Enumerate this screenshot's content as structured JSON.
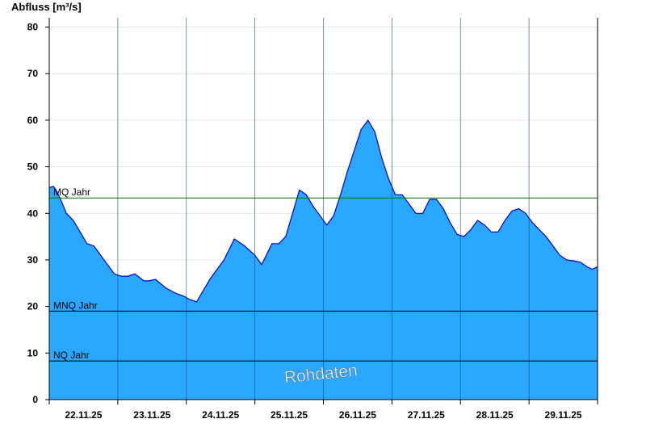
{
  "chart_data": {
    "type": "area",
    "ylabel": "Abfluss [m³/s]",
    "ylim": [
      0,
      82
    ],
    "yticks": [
      0,
      10,
      20,
      30,
      40,
      50,
      60,
      70,
      80
    ],
    "xlim_days": [
      0,
      8
    ],
    "day_labels": [
      "22.11.25",
      "23.11.25",
      "24.11.25",
      "25.11.25",
      "26.11.25",
      "27.11.25",
      "28.11.25",
      "29.11.25"
    ],
    "grid": true,
    "colors": {
      "area": "#2aa7ff",
      "line": "#0000cc",
      "mq": "#007700",
      "ref": "#000000"
    },
    "reference_lines": [
      {
        "label": "MQ Jahr",
        "value": 43.3
      },
      {
        "label": "MNQ Jahr",
        "value": 19.0
      },
      {
        "label": "NQ Jahr",
        "value": 8.3
      }
    ],
    "series": [
      {
        "x": [
          0,
          0.06,
          0.1,
          0.18,
          0.25,
          0.35,
          0.45,
          0.55,
          0.65,
          0.75,
          0.85,
          0.95,
          1.05,
          1.15,
          1.25,
          1.38,
          1.45,
          1.55,
          1.7,
          1.85,
          1.95,
          2.05,
          2.15,
          2.25,
          2.35,
          2.45,
          2.55,
          2.7,
          2.85,
          3.0,
          3.1,
          3.25,
          3.35,
          3.45,
          3.55,
          3.65,
          3.75,
          3.85,
          3.95,
          4.05,
          4.15,
          4.25,
          4.35,
          4.45,
          4.55,
          4.65,
          4.75,
          4.85,
          4.95,
          5.05,
          5.15,
          5.25,
          5.35,
          5.45,
          5.55,
          5.65,
          5.75,
          5.85,
          5.95,
          6.05,
          6.15,
          6.25,
          6.35,
          6.45,
          6.55,
          6.65,
          6.75,
          6.85,
          6.95,
          7.05,
          7.15,
          7.25,
          7.35,
          7.45,
          7.55,
          7.65,
          7.75,
          7.85,
          7.92,
          8.0
        ],
        "y": [
          45.5,
          45.8,
          45.0,
          42.5,
          40.0,
          38.5,
          36.0,
          33.5,
          33.0,
          31.0,
          29.0,
          27.0,
          26.5,
          26.5,
          27.0,
          25.5,
          25.5,
          25.8,
          24.0,
          22.8,
          22.3,
          21.5,
          21.0,
          23.5,
          26.0,
          28.0,
          30.0,
          34.5,
          33.0,
          31.0,
          29.0,
          33.5,
          33.5,
          35.0,
          40.0,
          45.0,
          44.0,
          41.5,
          39.5,
          37.5,
          39.5,
          44.0,
          49.0,
          53.5,
          58.0,
          60.0,
          57.5,
          52.0,
          47.5,
          44.0,
          44.0,
          42.0,
          40.0,
          40.0,
          43.0,
          43.0,
          41.0,
          38.0,
          35.5,
          35.0,
          36.5,
          38.5,
          37.5,
          36.0,
          36.0,
          38.5,
          40.5,
          41.0,
          40.0,
          38.0,
          36.5,
          35.0,
          33.0,
          31.0,
          30.0,
          29.8,
          29.5,
          28.5,
          28.0,
          28.5
        ]
      }
    ],
    "watermark": "Rohdaten"
  }
}
